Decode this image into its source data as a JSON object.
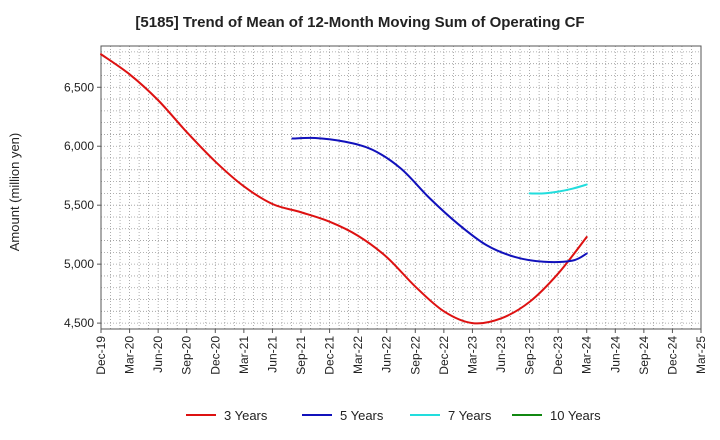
{
  "chart_data": {
    "type": "line",
    "title": "[5185]  Trend of Mean of 12-Month Moving Sum of Operating CF",
    "xlabel": "",
    "ylabel": "Amount (million yen)",
    "ylim": [
      4450,
      6850
    ],
    "yticks": [
      4500,
      5000,
      5500,
      6000,
      6500
    ],
    "ytick_labels": [
      "4,500",
      "5,000",
      "5,500",
      "6,000",
      "6,500"
    ],
    "x_categories": [
      "Dec-19",
      "Mar-20",
      "Jun-20",
      "Sep-20",
      "Dec-20",
      "Mar-21",
      "Jun-21",
      "Sep-21",
      "Dec-21",
      "Mar-22",
      "Jun-22",
      "Sep-22",
      "Dec-22",
      "Mar-23",
      "Jun-23",
      "Sep-23",
      "Dec-23",
      "Mar-24",
      "Jun-24",
      "Sep-24",
      "Dec-24",
      "Mar-25"
    ],
    "grid": true,
    "legend_position": "bottom",
    "series": [
      {
        "name": "3 Years",
        "color": "#dd1111",
        "points": [
          [
            0,
            6780
          ],
          [
            1,
            6610
          ],
          [
            2,
            6390
          ],
          [
            3,
            6120
          ],
          [
            4,
            5870
          ],
          [
            5,
            5660
          ],
          [
            6,
            5510
          ],
          [
            7,
            5440
          ],
          [
            8,
            5360
          ],
          [
            9,
            5240
          ],
          [
            10,
            5060
          ],
          [
            11,
            4810
          ],
          [
            12,
            4600
          ],
          [
            13,
            4500
          ],
          [
            14,
            4540
          ],
          [
            15,
            4680
          ],
          [
            16,
            4920
          ],
          [
            17,
            5230
          ]
        ]
      },
      {
        "name": "5 Years",
        "color": "#1111bb",
        "points": [
          [
            6.7,
            6065
          ],
          [
            7.5,
            6070
          ],
          [
            8.5,
            6040
          ],
          [
            9.5,
            5970
          ],
          [
            10.5,
            5810
          ],
          [
            11.5,
            5560
          ],
          [
            12.5,
            5340
          ],
          [
            13.5,
            5160
          ],
          [
            14.5,
            5060
          ],
          [
            15.5,
            5020
          ],
          [
            16.5,
            5030
          ],
          [
            17,
            5090
          ]
        ]
      },
      {
        "name": "7 Years",
        "color": "#22dddd",
        "points": [
          [
            15,
            5600
          ],
          [
            15.5,
            5600
          ],
          [
            16,
            5615
          ],
          [
            16.5,
            5640
          ],
          [
            17,
            5675
          ]
        ]
      },
      {
        "name": "10 Years",
        "color": "#118811",
        "points": []
      }
    ]
  }
}
